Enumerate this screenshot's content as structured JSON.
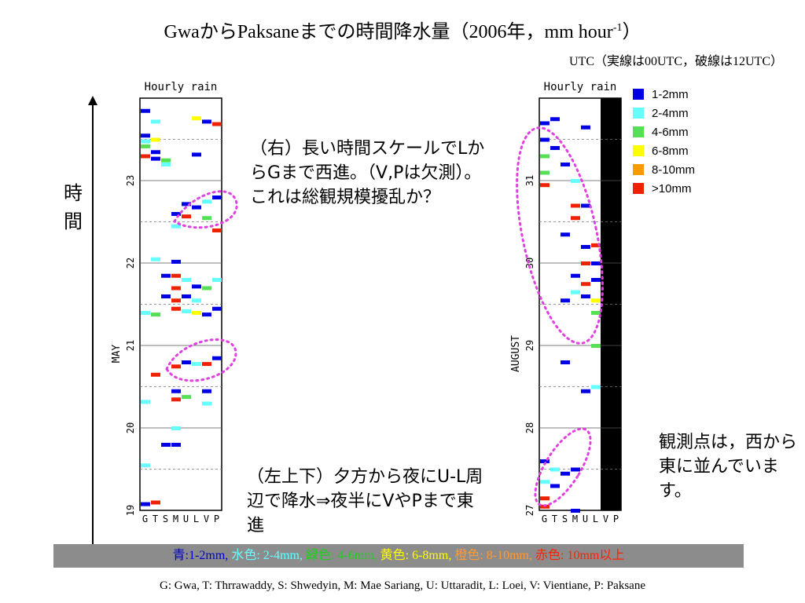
{
  "title": "GwaからPaksaneまでの時間降水量（2006年，mm hour",
  "title_sup": "-1",
  "title_tail": "）",
  "subtitle": "UTC（実線は00UTC，破線は12UTC）",
  "side_label": [
    "時",
    "間"
  ],
  "notes": {
    "right_panel": "（右）長い時間スケールでLからGまで西進。（V,Pは欠測）。これは総観規模擾乱か？",
    "left_panel": "（左上下）夕方から夜にU-L周辺で降水⇒夜半にVやPまで東進",
    "stations": "観測点は，西から東に並んでいます。"
  },
  "legend": [
    {
      "label": "1-2mm",
      "color": "#0000e6"
    },
    {
      "label": "2-4mm",
      "color": "#66ffff"
    },
    {
      "label": "4-6mm",
      "color": "#55e055"
    },
    {
      "label": "6-8mm",
      "color": "#ffff00"
    },
    {
      "label": "8-10mm",
      "color": "#ff9900"
    },
    {
      "label": ">10mm",
      "color": "#ee2200"
    }
  ],
  "color_key": [
    {
      "text": "青:1-2mm, ",
      "color": "#0000cc"
    },
    {
      "text": "水色: 2-4mm, ",
      "color": "#66ffff"
    },
    {
      "text": "緑色: 4-6mm, ",
      "color": "#22cc22"
    },
    {
      "text": "黄色: 6-8mm, ",
      "color": "#ffff00"
    },
    {
      "text": "橙色: 8-10mm, ",
      "color": "#ff9933"
    },
    {
      "text": "赤色: 10mm以上",
      "color": "#ff2200"
    }
  ],
  "footer": "G: Gwa, T: Thrrawaddy, S: Shwedyin, M: Mae Sariang, U: Uttaradit, L: Loei, V: Vientiane, P: Paksane",
  "chart_data": [
    {
      "type": "heatmap",
      "title": "Hourly rain",
      "ylabel": "MAY",
      "x": [
        "G",
        "T",
        "S",
        "M",
        "U",
        "L",
        "V",
        "P"
      ],
      "y_ticks": [
        "19",
        "20",
        "21",
        "22",
        "23"
      ],
      "y_range": [
        "19 00UTC",
        "23 18UTC"
      ],
      "values_note": "hourly rain category (1:1-2mm, 2:2-4mm, 3:4-6mm, 4:6-8mm, 5:8-10mm, 6:>10mm) per station",
      "cells": [
        {
          "station": "G",
          "day": 23.85,
          "cat": 1
        },
        {
          "station": "T",
          "day": 23.72,
          "cat": 2
        },
        {
          "station": "L",
          "day": 23.76,
          "cat": 4
        },
        {
          "station": "V",
          "day": 23.72,
          "cat": 1
        },
        {
          "station": "P",
          "day": 23.69,
          "cat": 6
        },
        {
          "station": "G",
          "day": 23.55,
          "cat": 1
        },
        {
          "station": "G",
          "day": 23.48,
          "cat": 2
        },
        {
          "station": "T",
          "day": 23.5,
          "cat": 4
        },
        {
          "station": "G",
          "day": 23.42,
          "cat": 3
        },
        {
          "station": "T",
          "day": 23.35,
          "cat": 1
        },
        {
          "station": "G",
          "day": 23.3,
          "cat": 6
        },
        {
          "station": "T",
          "day": 23.27,
          "cat": 1
        },
        {
          "station": "S",
          "day": 23.25,
          "cat": 3
        },
        {
          "station": "L",
          "day": 23.32,
          "cat": 1
        },
        {
          "station": "S",
          "day": 23.2,
          "cat": 2
        },
        {
          "station": "P",
          "day": 22.8,
          "cat": 1
        },
        {
          "station": "V",
          "day": 22.75,
          "cat": 2
        },
        {
          "station": "U",
          "day": 22.72,
          "cat": 1
        },
        {
          "station": "L",
          "day": 22.68,
          "cat": 1
        },
        {
          "station": "M",
          "day": 22.6,
          "cat": 1
        },
        {
          "station": "U",
          "day": 22.57,
          "cat": 6
        },
        {
          "station": "V",
          "day": 22.55,
          "cat": 3
        },
        {
          "station": "M",
          "day": 22.45,
          "cat": 2
        },
        {
          "station": "P",
          "day": 22.4,
          "cat": 6
        },
        {
          "station": "T",
          "day": 22.05,
          "cat": 2
        },
        {
          "station": "M",
          "day": 22.02,
          "cat": 1
        },
        {
          "station": "S",
          "day": 21.85,
          "cat": 1
        },
        {
          "station": "M",
          "day": 21.85,
          "cat": 6
        },
        {
          "station": "M",
          "day": 21.7,
          "cat": 6
        },
        {
          "station": "U",
          "day": 21.8,
          "cat": 2
        },
        {
          "station": "P",
          "day": 21.8,
          "cat": 2
        },
        {
          "station": "L",
          "day": 21.72,
          "cat": 1
        },
        {
          "station": "V",
          "day": 21.7,
          "cat": 3
        },
        {
          "station": "M",
          "day": 21.55,
          "cat": 6
        },
        {
          "station": "U",
          "day": 21.6,
          "cat": 1
        },
        {
          "station": "L",
          "day": 21.55,
          "cat": 2
        },
        {
          "station": "S",
          "day": 21.6,
          "cat": 1
        },
        {
          "station": "M",
          "day": 21.45,
          "cat": 6
        },
        {
          "station": "G",
          "day": 21.4,
          "cat": 2
        },
        {
          "station": "T",
          "day": 21.38,
          "cat": 3
        },
        {
          "station": "U",
          "day": 21.42,
          "cat": 2
        },
        {
          "station": "L",
          "day": 21.4,
          "cat": 4
        },
        {
          "station": "V",
          "day": 21.38,
          "cat": 1
        },
        {
          "station": "P",
          "day": 21.45,
          "cat": 1
        },
        {
          "station": "M",
          "day": 20.75,
          "cat": 6
        },
        {
          "station": "U",
          "day": 20.8,
          "cat": 1
        },
        {
          "station": "L",
          "day": 20.78,
          "cat": 2
        },
        {
          "station": "V",
          "day": 20.78,
          "cat": 6
        },
        {
          "station": "P",
          "day": 20.85,
          "cat": 1
        },
        {
          "station": "T",
          "day": 20.65,
          "cat": 6
        },
        {
          "station": "M",
          "day": 20.45,
          "cat": 1
        },
        {
          "station": "V",
          "day": 20.45,
          "cat": 1
        },
        {
          "station": "M",
          "day": 20.35,
          "cat": 6
        },
        {
          "station": "U",
          "day": 20.38,
          "cat": 3
        },
        {
          "station": "V",
          "day": 20.3,
          "cat": 2
        },
        {
          "station": "G",
          "day": 20.32,
          "cat": 2
        },
        {
          "station": "M",
          "day": 20.0,
          "cat": 2
        },
        {
          "station": "S",
          "day": 19.8,
          "cat": 1
        },
        {
          "station": "M",
          "day": 19.8,
          "cat": 1
        },
        {
          "station": "G",
          "day": 19.55,
          "cat": 2
        },
        {
          "station": "T",
          "day": 19.1,
          "cat": 6
        },
        {
          "station": "G",
          "day": 19.08,
          "cat": 1
        }
      ]
    },
    {
      "type": "heatmap",
      "title": "Hourly rain",
      "ylabel": "AUGUST",
      "x": [
        "G",
        "T",
        "S",
        "M",
        "U",
        "L",
        "V",
        "P"
      ],
      "y_ticks": [
        "27",
        "28",
        "29",
        "30",
        "31"
      ],
      "y_range": [
        "27 00UTC",
        "31 18UTC"
      ],
      "missing_stations": [
        "V",
        "P"
      ],
      "cells": [
        {
          "station": "G",
          "day": 31.7,
          "cat": 1
        },
        {
          "station": "T",
          "day": 31.75,
          "cat": 1
        },
        {
          "station": "U",
          "day": 31.65,
          "cat": 1
        },
        {
          "station": "G",
          "day": 31.5,
          "cat": 1
        },
        {
          "station": "T",
          "day": 31.4,
          "cat": 1
        },
        {
          "station": "G",
          "day": 31.3,
          "cat": 3
        },
        {
          "station": "G",
          "day": 31.1,
          "cat": 3
        },
        {
          "station": "S",
          "day": 31.2,
          "cat": 1
        },
        {
          "station": "G",
          "day": 30.95,
          "cat": 6
        },
        {
          "station": "M",
          "day": 31.0,
          "cat": 2
        },
        {
          "station": "M",
          "day": 30.7,
          "cat": 6
        },
        {
          "station": "M",
          "day": 30.55,
          "cat": 6
        },
        {
          "station": "U",
          "day": 30.7,
          "cat": 1
        },
        {
          "station": "S",
          "day": 30.35,
          "cat": 1
        },
        {
          "station": "U",
          "day": 30.2,
          "cat": 1
        },
        {
          "station": "L",
          "day": 30.22,
          "cat": 6
        },
        {
          "station": "U",
          "day": 30.0,
          "cat": 6
        },
        {
          "station": "L",
          "day": 30.0,
          "cat": 1
        },
        {
          "station": "M",
          "day": 29.85,
          "cat": 1
        },
        {
          "station": "U",
          "day": 29.75,
          "cat": 6
        },
        {
          "station": "L",
          "day": 29.8,
          "cat": 1
        },
        {
          "station": "M",
          "day": 29.65,
          "cat": 2
        },
        {
          "station": "U",
          "day": 29.6,
          "cat": 1
        },
        {
          "station": "L",
          "day": 29.55,
          "cat": 4
        },
        {
          "station": "L",
          "day": 29.4,
          "cat": 3
        },
        {
          "station": "S",
          "day": 29.55,
          "cat": 1
        },
        {
          "station": "L",
          "day": 29.0,
          "cat": 3
        },
        {
          "station": "S",
          "day": 28.8,
          "cat": 1
        },
        {
          "station": "L",
          "day": 28.5,
          "cat": 2
        },
        {
          "station": "U",
          "day": 28.45,
          "cat": 1
        },
        {
          "station": "G",
          "day": 27.6,
          "cat": 1
        },
        {
          "station": "T",
          "day": 27.5,
          "cat": 2
        },
        {
          "station": "S",
          "day": 27.45,
          "cat": 1
        },
        {
          "station": "G",
          "day": 27.35,
          "cat": 2
        },
        {
          "station": "T",
          "day": 27.3,
          "cat": 1
        },
        {
          "station": "G",
          "day": 27.15,
          "cat": 6
        },
        {
          "station": "G",
          "day": 27.05,
          "cat": 6
        },
        {
          "station": "M",
          "day": 27.5,
          "cat": 1
        },
        {
          "station": "M",
          "day": 27.0,
          "cat": 1
        }
      ]
    }
  ]
}
